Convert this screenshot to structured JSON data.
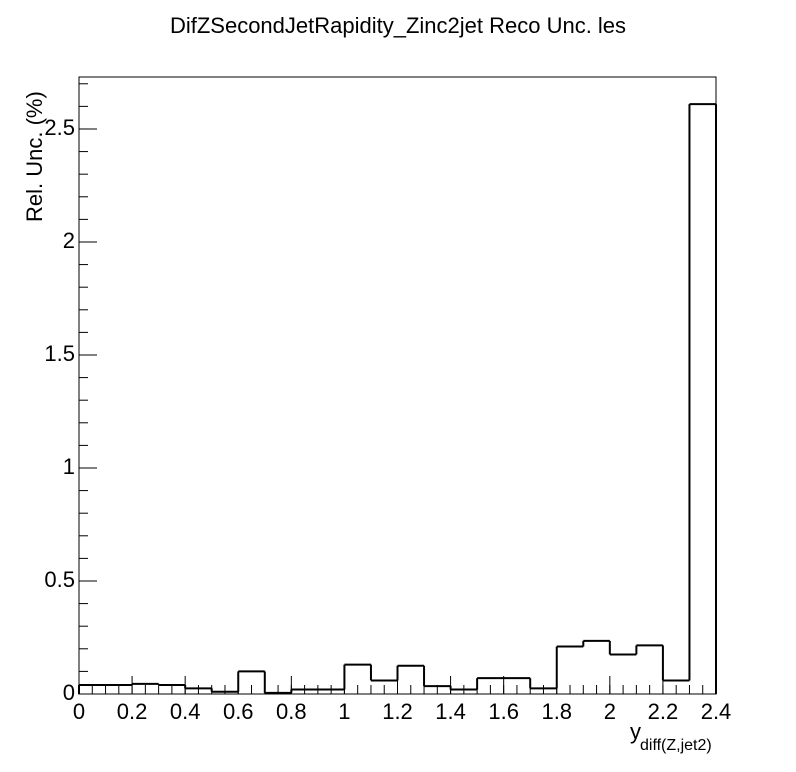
{
  "chart_data": {
    "type": "histogram",
    "title": "DifZSecondJetRapidity_Zinc2jet Reco Unc. les",
    "x_label": "y",
    "x_label_subscript": "diff(Z,jet2)",
    "y_label": "Rel. Unc. (%)",
    "bins": [
      0,
      0.1,
      0.2,
      0.3,
      0.4,
      0.5,
      0.6,
      0.7,
      0.8,
      0.9,
      1.0,
      1.1,
      1.2,
      1.3,
      1.4,
      1.5,
      1.6,
      1.7,
      1.8,
      1.9,
      2.0,
      2.1,
      2.2,
      2.3,
      2.4
    ],
    "values": [
      0.04,
      0.04,
      0.045,
      0.04,
      0.025,
      0.01,
      0.1,
      0.005,
      0.02,
      0.02,
      0.13,
      0.06,
      0.125,
      0.035,
      0.02,
      0.07,
      0.07,
      0.025,
      0.21,
      0.235,
      0.175,
      0.215,
      0.06,
      2.61
    ],
    "color": "#000000",
    "xlim": [
      0,
      2.4
    ],
    "xticks": [
      0,
      0.2,
      0.4,
      0.6,
      0.8,
      1,
      1.2,
      1.4,
      1.6,
      1.8,
      2,
      2.2,
      2.4
    ],
    "ylim": [
      0,
      2.73
    ],
    "yticks": [
      0,
      0.5,
      1,
      1.5,
      2,
      2.5
    ],
    "grid": false
  }
}
